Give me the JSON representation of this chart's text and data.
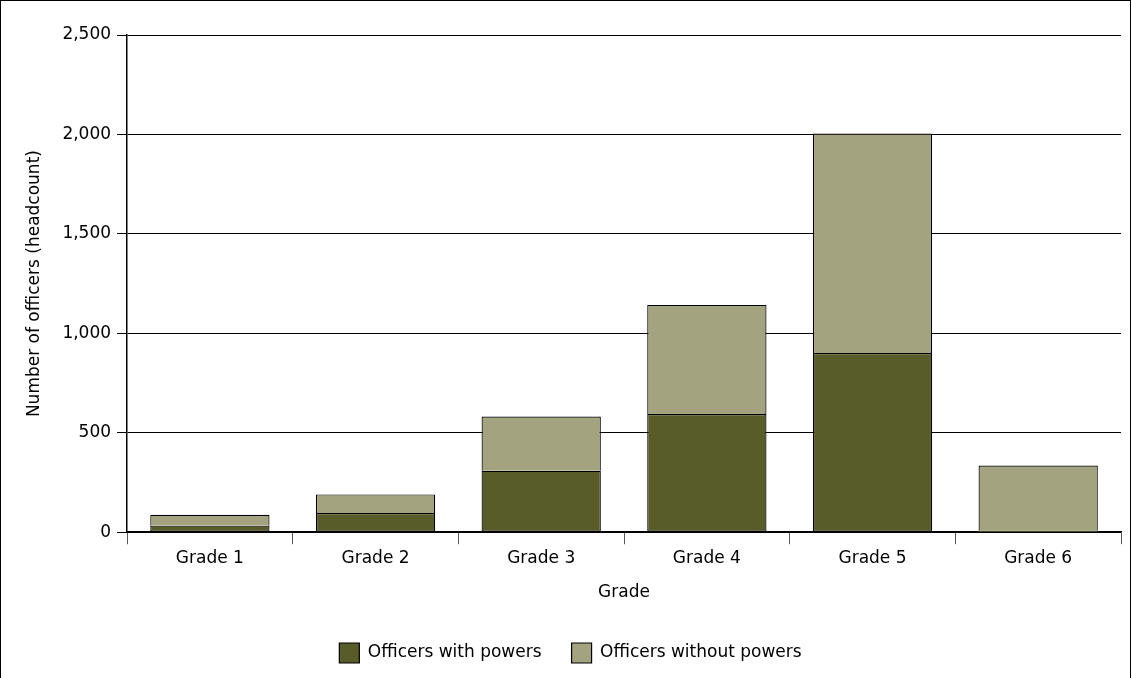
{
  "chart_data": {
    "type": "bar",
    "stacked": true,
    "xlabel": "Grade",
    "ylabel": "Number of officers (headcount)",
    "categories": [
      "Grade 1",
      "Grade 2",
      "Grade 3",
      "Grade 4",
      "Grade 5",
      "Grade 6"
    ],
    "series": [
      {
        "name": "Officers with powers",
        "color": "#585c28",
        "values": [
          33,
          96,
          309,
          594,
          901,
          7
        ]
      },
      {
        "name": "Officers without powers",
        "color": "#a3a37f",
        "values": [
          55,
          94,
          273,
          549,
          1104,
          328
        ]
      }
    ],
    "ylim": [
      0,
      2500
    ],
    "yticks": [
      {
        "value": 0,
        "label": "0"
      },
      {
        "value": 500,
        "label": "500"
      },
      {
        "value": 1000,
        "label": "1,000"
      },
      {
        "value": 1500,
        "label": "1,500"
      },
      {
        "value": 2000,
        "label": "2,000"
      },
      {
        "value": 2500,
        "label": "2,500"
      }
    ],
    "grid": "y",
    "legend": "bottom"
  }
}
